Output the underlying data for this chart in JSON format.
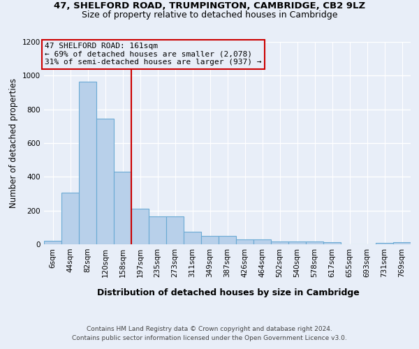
{
  "title1": "47, SHELFORD ROAD, TRUMPINGTON, CAMBRIDGE, CB2 9LZ",
  "title2": "Size of property relative to detached houses in Cambridge",
  "xlabel": "Distribution of detached houses by size in Cambridge",
  "ylabel": "Number of detached properties",
  "bar_labels": [
    "6sqm",
    "44sqm",
    "82sqm",
    "120sqm",
    "158sqm",
    "197sqm",
    "235sqm",
    "273sqm",
    "311sqm",
    "349sqm",
    "387sqm",
    "426sqm",
    "464sqm",
    "502sqm",
    "540sqm",
    "578sqm",
    "617sqm",
    "655sqm",
    "693sqm",
    "731sqm",
    "769sqm"
  ],
  "bar_values": [
    22,
    305,
    963,
    743,
    430,
    210,
    165,
    165,
    75,
    48,
    48,
    30,
    30,
    15,
    15,
    15,
    13,
    0,
    0,
    10,
    13
  ],
  "bar_color": "#b8d0ea",
  "bar_edge_color": "#6aaad4",
  "red_line_bar_index": 4,
  "highlight_color": "#cc0000",
  "ylim": [
    0,
    1200
  ],
  "yticks": [
    0,
    200,
    400,
    600,
    800,
    1000,
    1200
  ],
  "ann_line1": "47 SHELFORD ROAD: 161sqm",
  "ann_line2": "← 69% of detached houses are smaller (2,078)",
  "ann_line3": "31% of semi-detached houses are larger (937) →",
  "footer1": "Contains HM Land Registry data © Crown copyright and database right 2024.",
  "footer2": "Contains public sector information licensed under the Open Government Licence v3.0.",
  "bg_color": "#e8eef8",
  "grid_color": "#ffffff"
}
